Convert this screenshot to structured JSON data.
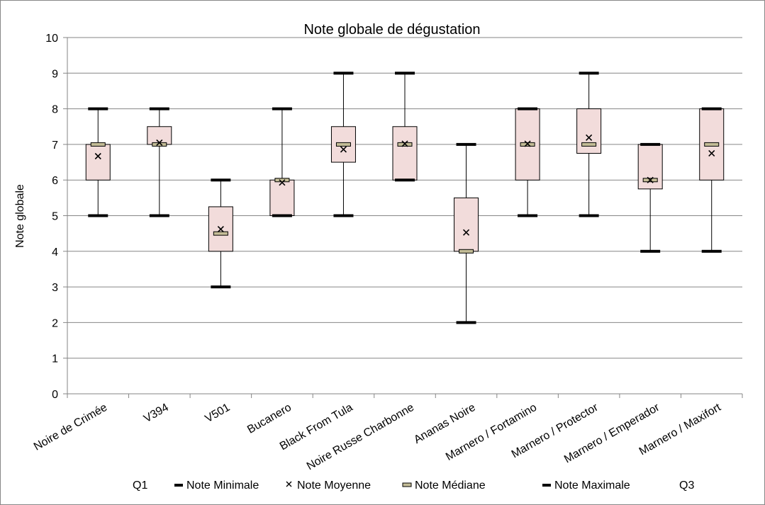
{
  "chart_data": {
    "type": "box",
    "title": "Note globale de dégustation",
    "xlabel": "",
    "ylabel": "Note globale",
    "ylim": [
      0,
      10
    ],
    "yticks": [
      "0",
      "1",
      "2",
      "3",
      "4",
      "5",
      "6",
      "7",
      "8",
      "9",
      "10"
    ],
    "grid": true,
    "legend_position": "bottom",
    "categories": [
      "Noire de Crimée",
      "V394",
      "V501",
      "Bucanero",
      "Black From Tula",
      "Noire Russe Charbonne",
      "Ananas Noire",
      "Marnero / Fortamino",
      "Marnero / Protector",
      "Marnero / Emperador",
      "Marnero / Maxifort"
    ],
    "series": [
      {
        "name": "Q1",
        "values": [
          6,
          7,
          4,
          5,
          6.5,
          6,
          4,
          6,
          6.75,
          5.75,
          6
        ]
      },
      {
        "name": "Note Minimale",
        "values": [
          5,
          5,
          3,
          5,
          5,
          6,
          2,
          5,
          5,
          4,
          4
        ]
      },
      {
        "name": "Note Moyenne",
        "values": [
          6.67,
          7.05,
          4.62,
          5.93,
          6.86,
          7.02,
          4.53,
          7.02,
          7.19,
          6.0,
          6.75
        ]
      },
      {
        "name": "Note Médiane",
        "values": [
          7,
          7,
          4.5,
          6,
          7,
          7,
          4,
          7,
          7,
          6,
          7
        ]
      },
      {
        "name": "Note Maximale",
        "values": [
          8,
          8,
          6,
          8,
          9,
          9,
          7,
          8,
          9,
          7,
          8
        ]
      },
      {
        "name": "Q3",
        "values": [
          7,
          7.5,
          5.25,
          6,
          7.5,
          7.5,
          5.5,
          8,
          8,
          7,
          8
        ]
      }
    ],
    "colors": {
      "box_fill": "#f2dcdb",
      "box_stroke": "#000000",
      "grid": "#868686",
      "median": "#c4bd97"
    }
  }
}
